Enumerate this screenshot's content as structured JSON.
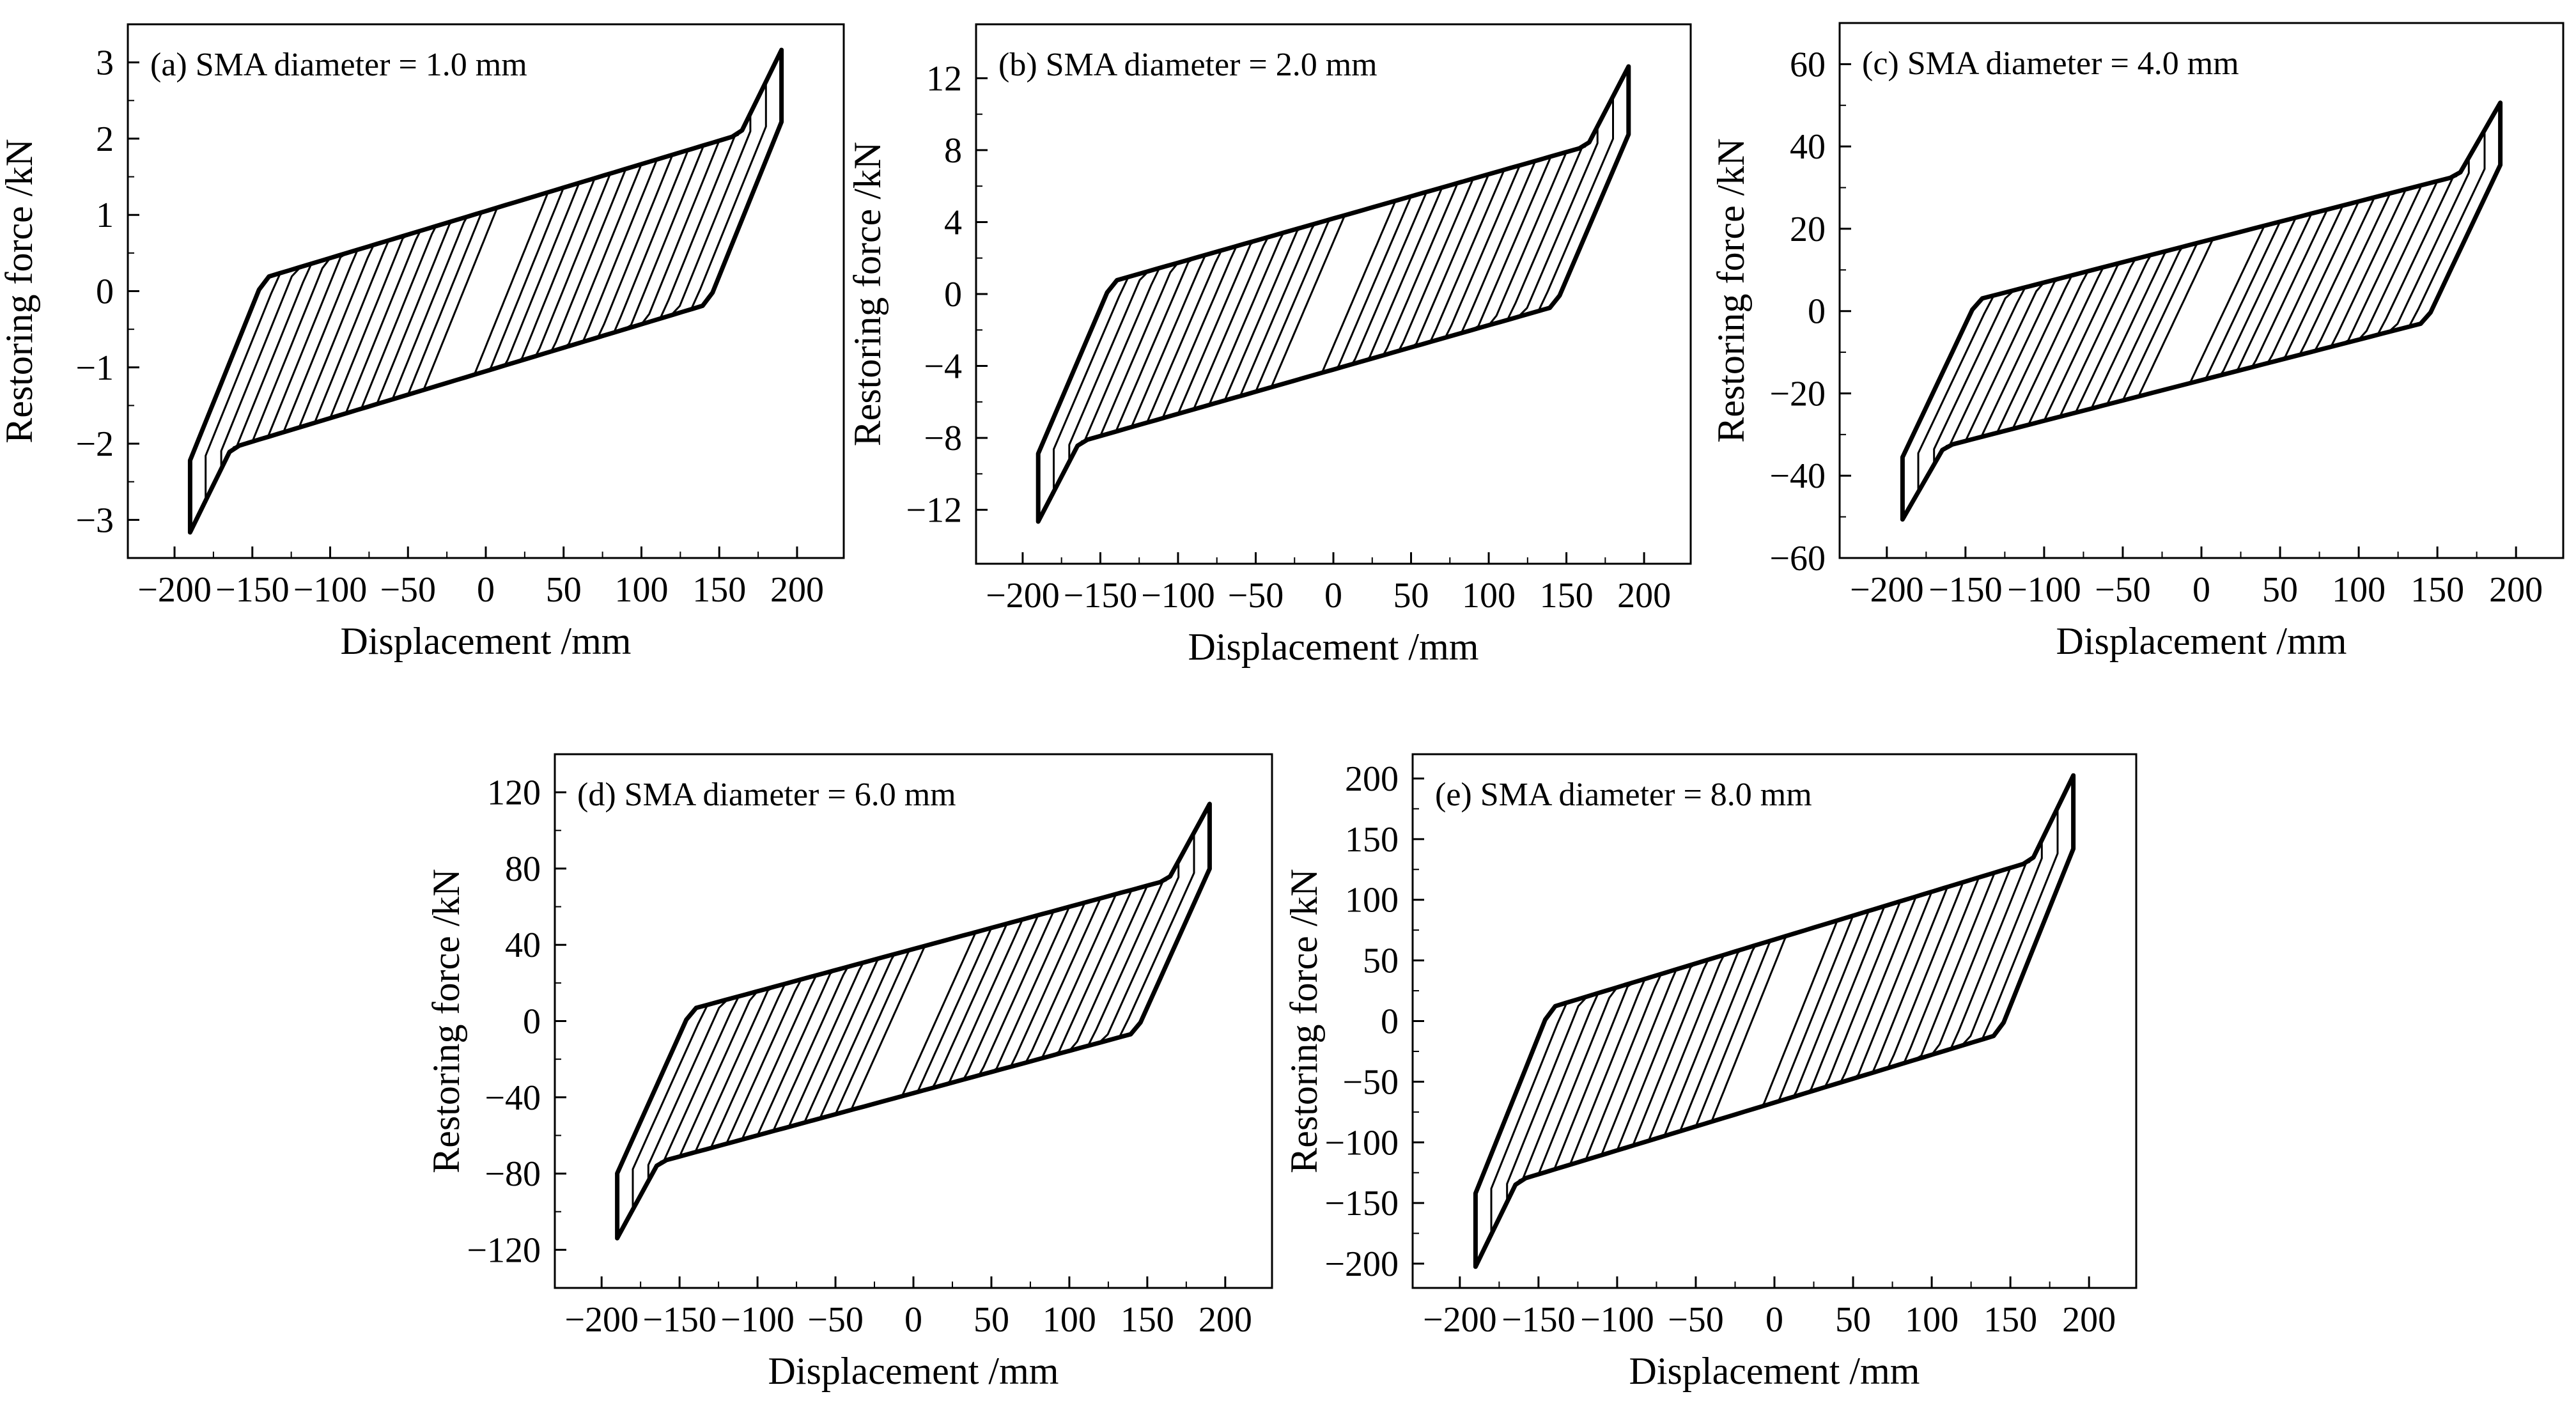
{
  "figure": {
    "x_label": "Displacement /mm",
    "y_label": "Restoring force /kN"
  },
  "chart_data": [
    {
      "type": "line",
      "title": "(a) SMA diameter = 1.0 mm",
      "xlabel": "Displacement /mm",
      "ylabel": "Restoring force /kN",
      "xlim": [
        -230,
        230
      ],
      "ylim": [
        -3.5,
        3.5
      ],
      "xticks": [
        -200,
        -150,
        -100,
        -50,
        0,
        50,
        100,
        150,
        200
      ],
      "xtick_labels": [
        "−200",
        "−150",
        "−100",
        "−50",
        "0",
        "50",
        "100",
        "150",
        "200"
      ],
      "yticks": [
        -3,
        -2,
        -1,
        0,
        1,
        2,
        3
      ],
      "ytick_labels": [
        "−3",
        "−2",
        "−1",
        "0",
        "1",
        "2",
        "3"
      ],
      "max_displacement": 190,
      "peak_force": 3.0,
      "cycle_amplitudes": [
        40,
        50,
        60,
        70,
        80,
        90,
        100,
        110,
        120,
        130,
        140,
        150,
        160,
        170,
        180,
        190
      ],
      "series": [
        {
          "name": "hysteresis loops"
        }
      ]
    },
    {
      "type": "line",
      "title": "(b) SMA diameter = 2.0 mm",
      "xlabel": "Displacement /mm",
      "ylabel": "Restoring force /kN",
      "xlim": [
        -230,
        230
      ],
      "ylim": [
        -15,
        15
      ],
      "xticks": [
        -200,
        -150,
        -100,
        -50,
        0,
        50,
        100,
        150,
        200
      ],
      "xtick_labels": [
        "−200",
        "−150",
        "−100",
        "−50",
        "0",
        "50",
        "100",
        "150",
        "200"
      ],
      "yticks": [
        -12,
        -8,
        -4,
        0,
        4,
        8,
        12
      ],
      "ytick_labels": [
        "−12",
        "−8",
        "−4",
        "0",
        "4",
        "8",
        "12"
      ],
      "max_displacement": 190,
      "peak_force": 12,
      "cycle_amplitudes": [
        40,
        50,
        60,
        70,
        80,
        90,
        100,
        110,
        120,
        130,
        140,
        150,
        160,
        170,
        180,
        190
      ],
      "series": [
        {
          "name": "hysteresis loops"
        }
      ]
    },
    {
      "type": "line",
      "title": "(c) SMA diameter = 4.0 mm",
      "xlabel": "Displacement /mm",
      "ylabel": "Restoring force /kN",
      "xlim": [
        -230,
        230
      ],
      "ylim": [
        -60,
        70
      ],
      "xticks": [
        -200,
        -150,
        -100,
        -50,
        0,
        50,
        100,
        150,
        200
      ],
      "xtick_labels": [
        "−200",
        "−150",
        "−100",
        "−50",
        "0",
        "50",
        "100",
        "150",
        "200"
      ],
      "yticks": [
        -60,
        -40,
        -20,
        0,
        20,
        40,
        60
      ],
      "ytick_labels": [
        "−60",
        "−40",
        "−20",
        "0",
        "20",
        "40",
        "60"
      ],
      "max_displacement": 190,
      "peak_force": 48,
      "cycle_amplitudes": [
        40,
        50,
        60,
        70,
        80,
        90,
        100,
        110,
        120,
        130,
        140,
        150,
        160,
        170,
        180,
        190
      ],
      "series": [
        {
          "name": "hysteresis loops"
        }
      ]
    },
    {
      "type": "line",
      "title": "(d) SMA diameter = 6.0 mm",
      "xlabel": "Displacement /mm",
      "ylabel": "Restoring force /kN",
      "xlim": [
        -230,
        230
      ],
      "ylim": [
        -140,
        140
      ],
      "xticks": [
        -200,
        -150,
        -100,
        -50,
        0,
        50,
        100,
        150,
        200
      ],
      "xtick_labels": [
        "−200",
        "−150",
        "−100",
        "−50",
        "0",
        "50",
        "100",
        "150",
        "200"
      ],
      "yticks": [
        -120,
        -80,
        -40,
        0,
        40,
        80,
        120
      ],
      "ytick_labels": [
        "−120",
        "−80",
        "−40",
        "0",
        "40",
        "80",
        "120"
      ],
      "max_displacement": 190,
      "peak_force": 108,
      "cycle_amplitudes": [
        40,
        50,
        60,
        70,
        80,
        90,
        100,
        110,
        120,
        130,
        140,
        150,
        160,
        170,
        180,
        190
      ],
      "series": [
        {
          "name": "hysteresis loops"
        }
      ]
    },
    {
      "type": "line",
      "title": "(e) SMA diameter = 8.0 mm",
      "xlabel": "Displacement /mm",
      "ylabel": "Restoring force /kN",
      "xlim": [
        -230,
        230
      ],
      "ylim": [
        -220,
        220
      ],
      "xticks": [
        -200,
        -150,
        -100,
        -50,
        0,
        50,
        100,
        150,
        200
      ],
      "xtick_labels": [
        "−200",
        "−150",
        "−100",
        "−50",
        "0",
        "50",
        "100",
        "150",
        "200"
      ],
      "yticks": [
        -200,
        -150,
        -100,
        -50,
        0,
        50,
        100,
        150,
        200
      ],
      "ytick_labels": [
        "−200",
        "−150",
        "−100",
        "−50",
        "0",
        "50",
        "100",
        "150",
        "200"
      ],
      "max_displacement": 190,
      "peak_force": 192,
      "cycle_amplitudes": [
        40,
        50,
        60,
        70,
        80,
        90,
        100,
        110,
        120,
        130,
        140,
        150,
        160,
        170,
        180,
        190
      ],
      "series": [
        {
          "name": "hysteresis loops"
        }
      ]
    }
  ]
}
